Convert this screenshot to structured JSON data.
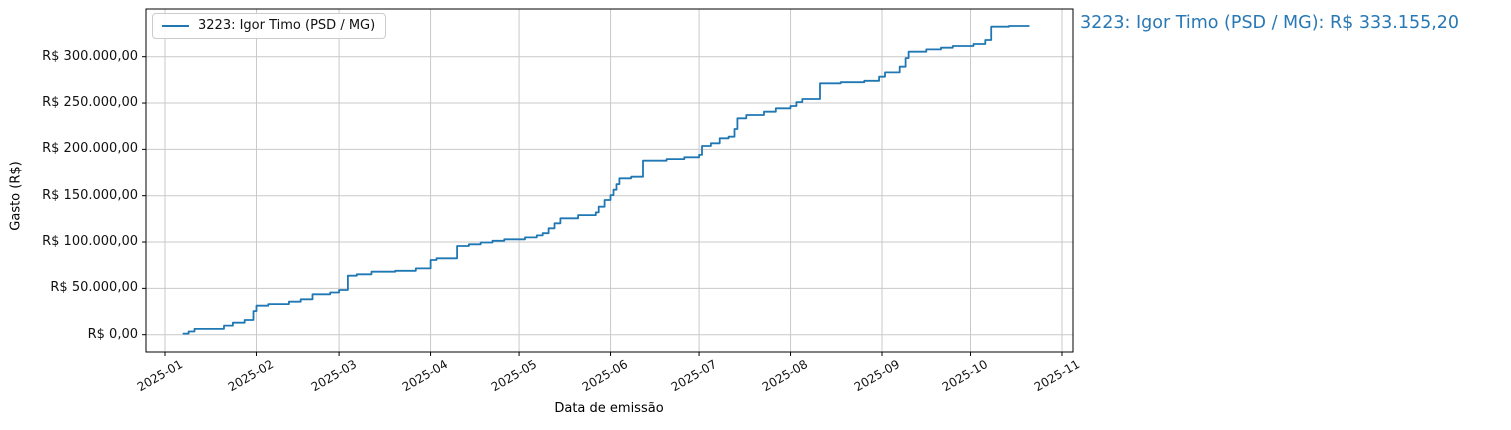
{
  "annotation": {
    "text": "3223: Igor Timo (PSD / MG): R$ 333.155,20",
    "color": "#2878b5"
  },
  "colors": {
    "grid": "#c9c9c9",
    "spine": "#000000",
    "line": "#1f77b4"
  },
  "chart_data": {
    "type": "line",
    "line_style": "step-post",
    "title": "",
    "xlabel": "Data de emissão",
    "ylabel": "Gasto (R$)",
    "grid": true,
    "legend_position": "upper-left",
    "x_range": [
      "2025-01-01",
      "2025-11-01"
    ],
    "ylim": [
      0,
      300000
    ],
    "x_ticks": [
      "2025-01",
      "2025-02",
      "2025-03",
      "2025-04",
      "2025-05",
      "2025-06",
      "2025-07",
      "2025-08",
      "2025-09",
      "2025-10",
      "2025-11"
    ],
    "y_ticks": [
      {
        "value": 0,
        "label": "R$ 0,00"
      },
      {
        "value": 50000,
        "label": "R$ 50.000,00"
      },
      {
        "value": 100000,
        "label": "R$ 100.000,00"
      },
      {
        "value": 150000,
        "label": "R$ 150.000,00"
      },
      {
        "value": 200000,
        "label": "R$ 200.000,00"
      },
      {
        "value": 250000,
        "label": "R$ 250.000,00"
      },
      {
        "value": 300000,
        "label": "R$ 300.000,00"
      }
    ],
    "series": [
      {
        "name": "3223: Igor Timo (PSD / MG)",
        "color": "#1f77b4",
        "final_value": 333155.2,
        "final_value_label": "R$ 333.155,20",
        "last_date_drawn": "2025-10-21",
        "points": [
          [
            "2025-01-07",
            1200
          ],
          [
            "2025-01-09",
            3400
          ],
          [
            "2025-01-11",
            6300
          ],
          [
            "2025-01-21",
            9800
          ],
          [
            "2025-01-24",
            13000
          ],
          [
            "2025-01-28",
            15900
          ],
          [
            "2025-01-31",
            25500
          ],
          [
            "2025-02-01",
            31300
          ],
          [
            "2025-02-05",
            33000
          ],
          [
            "2025-02-12",
            35600
          ],
          [
            "2025-02-16",
            38200
          ],
          [
            "2025-02-20",
            43600
          ],
          [
            "2025-02-26",
            45500
          ],
          [
            "2025-03-01",
            48200
          ],
          [
            "2025-03-04",
            63700
          ],
          [
            "2025-03-07",
            65200
          ],
          [
            "2025-03-12",
            68000
          ],
          [
            "2025-03-20",
            69000
          ],
          [
            "2025-03-27",
            71600
          ],
          [
            "2025-04-01",
            80600
          ],
          [
            "2025-04-03",
            82400
          ],
          [
            "2025-04-10",
            95700
          ],
          [
            "2025-04-14",
            97500
          ],
          [
            "2025-04-18",
            99500
          ],
          [
            "2025-04-22",
            101300
          ],
          [
            "2025-04-26",
            102900
          ],
          [
            "2025-05-03",
            105000
          ],
          [
            "2025-05-07",
            107200
          ],
          [
            "2025-05-09",
            109500
          ],
          [
            "2025-05-11",
            114800
          ],
          [
            "2025-05-13",
            120200
          ],
          [
            "2025-05-15",
            125600
          ],
          [
            "2025-05-21",
            129100
          ],
          [
            "2025-05-27",
            132000
          ],
          [
            "2025-05-28",
            138100
          ],
          [
            "2025-05-30",
            145400
          ],
          [
            "2025-06-01",
            150700
          ],
          [
            "2025-06-02",
            156500
          ],
          [
            "2025-06-03",
            162500
          ],
          [
            "2025-06-04",
            168800
          ],
          [
            "2025-06-08",
            170500
          ],
          [
            "2025-06-12",
            187800
          ],
          [
            "2025-06-20",
            189500
          ],
          [
            "2025-06-26",
            191400
          ],
          [
            "2025-07-01",
            194000
          ],
          [
            "2025-07-02",
            203600
          ],
          [
            "2025-07-05",
            206500
          ],
          [
            "2025-07-08",
            211900
          ],
          [
            "2025-07-11",
            213700
          ],
          [
            "2025-07-13",
            222000
          ],
          [
            "2025-07-14",
            233500
          ],
          [
            "2025-07-17",
            237100
          ],
          [
            "2025-07-23",
            240700
          ],
          [
            "2025-07-27",
            244300
          ],
          [
            "2025-08-01",
            246800
          ],
          [
            "2025-08-03",
            251000
          ],
          [
            "2025-08-05",
            254300
          ],
          [
            "2025-08-11",
            271300
          ],
          [
            "2025-08-18",
            272500
          ],
          [
            "2025-08-26",
            274000
          ],
          [
            "2025-08-31",
            278400
          ],
          [
            "2025-09-02",
            283100
          ],
          [
            "2025-09-07",
            289200
          ],
          [
            "2025-09-09",
            298500
          ],
          [
            "2025-09-10",
            305400
          ],
          [
            "2025-09-16",
            307900
          ],
          [
            "2025-09-21",
            309700
          ],
          [
            "2025-09-25",
            311500
          ],
          [
            "2025-10-02",
            313700
          ],
          [
            "2025-10-06",
            318000
          ],
          [
            "2025-10-08",
            332400
          ],
          [
            "2025-10-14",
            333155.2
          ]
        ]
      }
    ]
  }
}
